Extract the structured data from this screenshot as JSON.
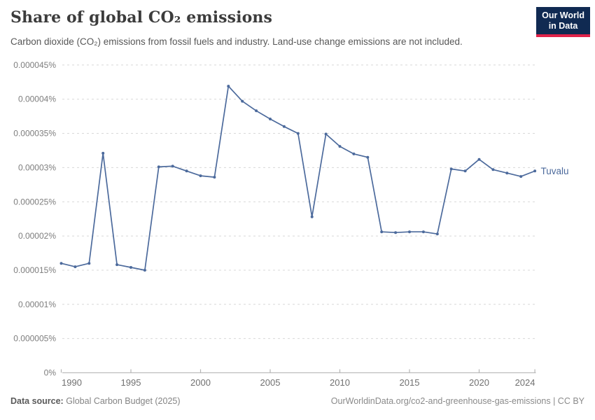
{
  "header": {
    "title": "Share of global CO₂ emissions",
    "subtitle": "Carbon dioxide (CO₂) emissions from fossil fuels and industry. Land-use change emissions are not included."
  },
  "logo": {
    "line1": "Our World",
    "line2": "in Data"
  },
  "footer": {
    "source_label": "Data source:",
    "source_value": "Global Carbon Budget (2025)",
    "credit": "OurWorldinData.org/co2-and-greenhouse-gas-emissions | CC BY"
  },
  "colors": {
    "series_line": "#4c6a9c",
    "entity_label": "#4c6a9c",
    "grid": "#d8d8d8",
    "axis_line": "#bdbdbd",
    "axis_tick": "#b5b5b5",
    "y_tick_text": "#7d7d7d",
    "x_tick_text": "#707070",
    "logo_bg": "#102a52",
    "logo_stripe": "#e0234a"
  },
  "chart_data": {
    "type": "line",
    "title": "Share of global CO₂ emissions",
    "ylabel": "",
    "xlabel": "",
    "unit": "%",
    "grid": "dashed-horizontal",
    "legend_position": "end-of-line-label",
    "xlim": [
      1990,
      2024
    ],
    "ylim": [
      0,
      4.5e-05
    ],
    "x_ticks": [
      1990,
      1995,
      2000,
      2005,
      2010,
      2015,
      2020,
      2024
    ],
    "y_ticks": [
      0,
      5e-06,
      1e-05,
      1.5e-05,
      2e-05,
      2.5e-05,
      3e-05,
      3.5e-05,
      4e-05,
      4.5e-05
    ],
    "y_tick_labels": [
      "0%",
      "0.000005%",
      "0.00001%",
      "0.000015%",
      "0.00002%",
      "0.000025%",
      "0.00003%",
      "0.000035%",
      "0.00004%",
      "0.000045%"
    ],
    "series": [
      {
        "name": "Tuvalu",
        "color": "#4c6a9c",
        "x": [
          1990,
          1991,
          1992,
          1993,
          1994,
          1995,
          1996,
          1997,
          1998,
          1999,
          2000,
          2001,
          2002,
          2003,
          2004,
          2005,
          2006,
          2007,
          2008,
          2009,
          2010,
          2011,
          2012,
          2013,
          2014,
          2015,
          2016,
          2017,
          2018,
          2019,
          2020,
          2021,
          2022,
          2023,
          2024
        ],
        "values": [
          1.6e-05,
          1.55e-05,
          1.6e-05,
          3.21e-05,
          1.58e-05,
          1.54e-05,
          1.5e-05,
          3.01e-05,
          3.02e-05,
          2.95e-05,
          2.88e-05,
          2.86e-05,
          4.19e-05,
          3.97e-05,
          3.83e-05,
          3.71e-05,
          3.6e-05,
          3.5e-05,
          2.28e-05,
          3.49e-05,
          3.31e-05,
          3.2e-05,
          3.15e-05,
          2.06e-05,
          2.05e-05,
          2.06e-05,
          2.06e-05,
          2.03e-05,
          2.98e-05,
          2.95e-05,
          3.12e-05,
          2.97e-05,
          2.92e-05,
          2.87e-05,
          2.95e-05
        ]
      }
    ]
  }
}
